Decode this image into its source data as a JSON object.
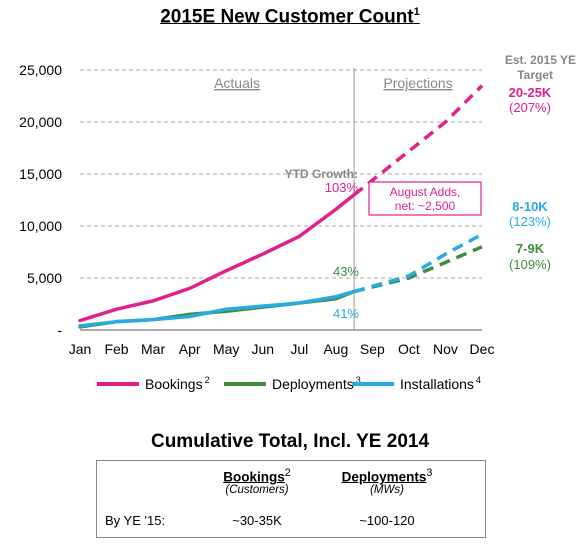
{
  "title": {
    "text": "2015E New Customer Count",
    "footnote": "1"
  },
  "chart_data": {
    "type": "line",
    "title": "2015E New Customer Count",
    "categories": [
      "Jan",
      "Feb",
      "Mar",
      "Apr",
      "May",
      "Jun",
      "Jul",
      "Aug",
      "Sep",
      "Oct",
      "Nov",
      "Dec"
    ],
    "y_ticks": [
      "25,000",
      "20,000",
      "15,000",
      "10,000",
      "5,000",
      "-"
    ],
    "ylim": [
      0,
      25000
    ],
    "grid": true,
    "sections": [
      "Actuals",
      "Projections"
    ],
    "series": [
      {
        "name": "Bookings",
        "footnote": "2",
        "color": "#e0218a",
        "actual": [
          900,
          2000,
          2800,
          4000,
          5700,
          7300,
          9000,
          11600,
          13000
        ],
        "projected": [
          13000,
          null,
          20000,
          23500
        ]
      },
      {
        "name": "Deployments",
        "footnote": "3",
        "color": "#3d8c40",
        "actual": [
          300,
          800,
          1000,
          1500,
          1800,
          2200,
          2600,
          3000,
          3700
        ],
        "projected": [
          3700,
          5000,
          6500,
          8000
        ]
      },
      {
        "name": "Installations",
        "footnote": "4",
        "color": "#2aaae2",
        "actual": [
          400,
          800,
          1000,
          1300,
          2000,
          2300,
          2600,
          3200,
          3700
        ],
        "projected": [
          3700,
          5200,
          7300,
          9200
        ]
      }
    ],
    "annotations": {
      "ytd_growth_label": "YTD Growth:",
      "bookings_ytd": "103%",
      "deployments_ytd": "43%",
      "installations_ytd": "41%",
      "august_adds": "August Adds,",
      "august_adds_net": "net: ~2,500",
      "target_header_1": "Est. 2015 YE",
      "target_header_2": "Target",
      "bookings_target": "20-25K",
      "bookings_target_pct": "(207%)",
      "installations_target": "8-10K",
      "installations_target_pct": "(123%)",
      "deployments_target": "7-9K",
      "deployments_target_pct": "(109%)"
    }
  },
  "cumulative": {
    "title": "Cumulative Total, Incl. YE 2014",
    "bookings_header": "Bookings",
    "bookings_footnote": "2",
    "bookings_sub": "(Customers)",
    "deployments_header": "Deployments",
    "deployments_footnote": "3",
    "deployments_sub": "(MWs)",
    "row_label": "By YE '15:",
    "bookings_value": "~30-35K",
    "deployments_value": "~100-120"
  }
}
